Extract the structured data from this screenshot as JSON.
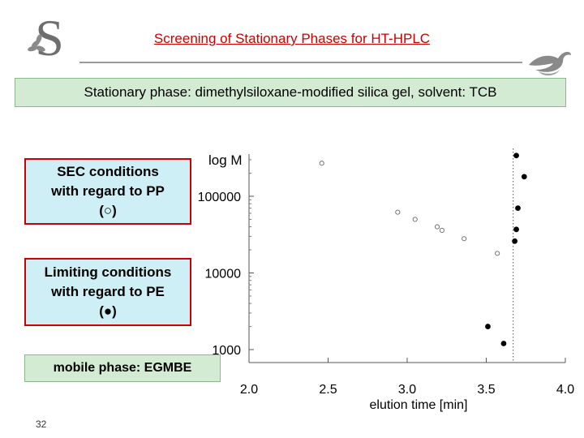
{
  "header": {
    "title": "Screening of Stationary Phases for HT-HPLC",
    "banner": "Stationary phase: dimethylsiloxane-modified silica gel, solvent: TCB",
    "accent_color": "#cc0000"
  },
  "logo": {
    "letter": "S",
    "icon": "university-logo-icon"
  },
  "decoration": {
    "icon": "bird-swirl-icon"
  },
  "boxes": {
    "sec": {
      "line1": "SEC conditions",
      "line2": "with regard to PP",
      "line3": "(○)"
    },
    "limiting": {
      "line1": "Limiting conditions",
      "line2": "with regard to PE",
      "line3": "(●)"
    },
    "mobile": {
      "text": "mobile phase: EGMBE"
    }
  },
  "slide_number": "32",
  "chart_data": {
    "type": "scatter",
    "title": "",
    "xlabel": "elution time [min]",
    "ylabel": "log M",
    "xlim": [
      2.0,
      4.0
    ],
    "ylim": [
      1000,
      300000
    ],
    "y_scale": "log",
    "x_ticks": [
      "2.0",
      "2.5",
      "3.0",
      "3.5",
      "4.0"
    ],
    "y_ticks": [
      "1000",
      "10000",
      "100000"
    ],
    "grid": false,
    "vertical_reference_line_x": 3.67,
    "series": [
      {
        "marker": "open-circle",
        "points": [
          {
            "x": 2.46,
            "y": 270000
          },
          {
            "x": 2.94,
            "y": 62000
          },
          {
            "x": 3.05,
            "y": 50000
          },
          {
            "x": 3.19,
            "y": 40000
          },
          {
            "x": 3.22,
            "y": 36000
          },
          {
            "x": 3.36,
            "y": 28000
          },
          {
            "x": 3.57,
            "y": 18000
          }
        ]
      },
      {
        "marker": "filled-circle",
        "points": [
          {
            "x": 3.69,
            "y": 340000
          },
          {
            "x": 3.74,
            "y": 180000
          },
          {
            "x": 3.7,
            "y": 70000
          },
          {
            "x": 3.69,
            "y": 37000
          },
          {
            "x": 3.68,
            "y": 26000
          },
          {
            "x": 3.51,
            "y": 2000
          },
          {
            "x": 3.61,
            "y": 1200
          }
        ]
      }
    ]
  }
}
